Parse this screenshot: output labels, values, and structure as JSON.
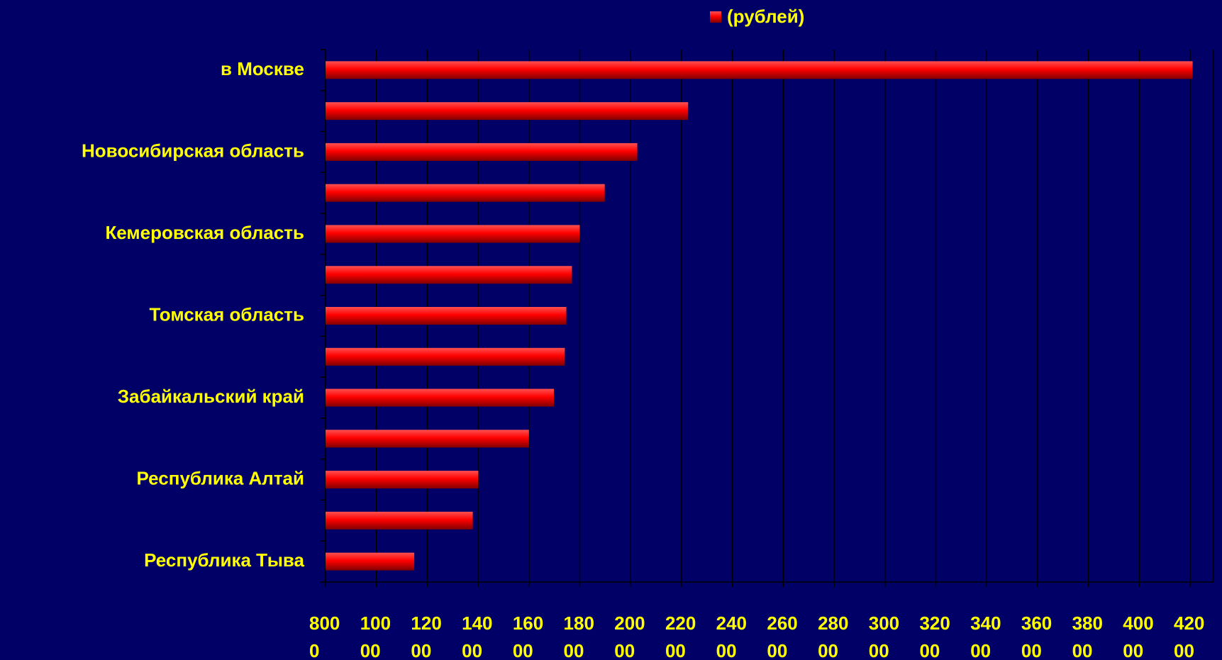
{
  "chart_data": {
    "type": "bar",
    "orientation": "horizontal",
    "categories": [
      "в Москве",
      null,
      "Новосибирская область",
      null,
      "Кемеровская область",
      null,
      "Томская область",
      null,
      "Забайкальский край",
      null,
      "Республика Алтай",
      null,
      "Республика Тыва"
    ],
    "series": [
      {
        "name": "(рублей)",
        "color": "#ff0000",
        "values": [
          42100,
          22260,
          20260,
          18980,
          18000,
          17690,
          17470,
          17410,
          16980,
          16000,
          14010,
          13790,
          11490
        ]
      }
    ],
    "xlim": [
      8000,
      42920
    ],
    "xticks": [
      8000,
      10000,
      12000,
      14000,
      16000,
      18000,
      20000,
      22000,
      24000,
      26000,
      28000,
      30000,
      32000,
      34000,
      36000,
      38000,
      40000,
      42000
    ],
    "grid": true,
    "legend": "top"
  }
}
